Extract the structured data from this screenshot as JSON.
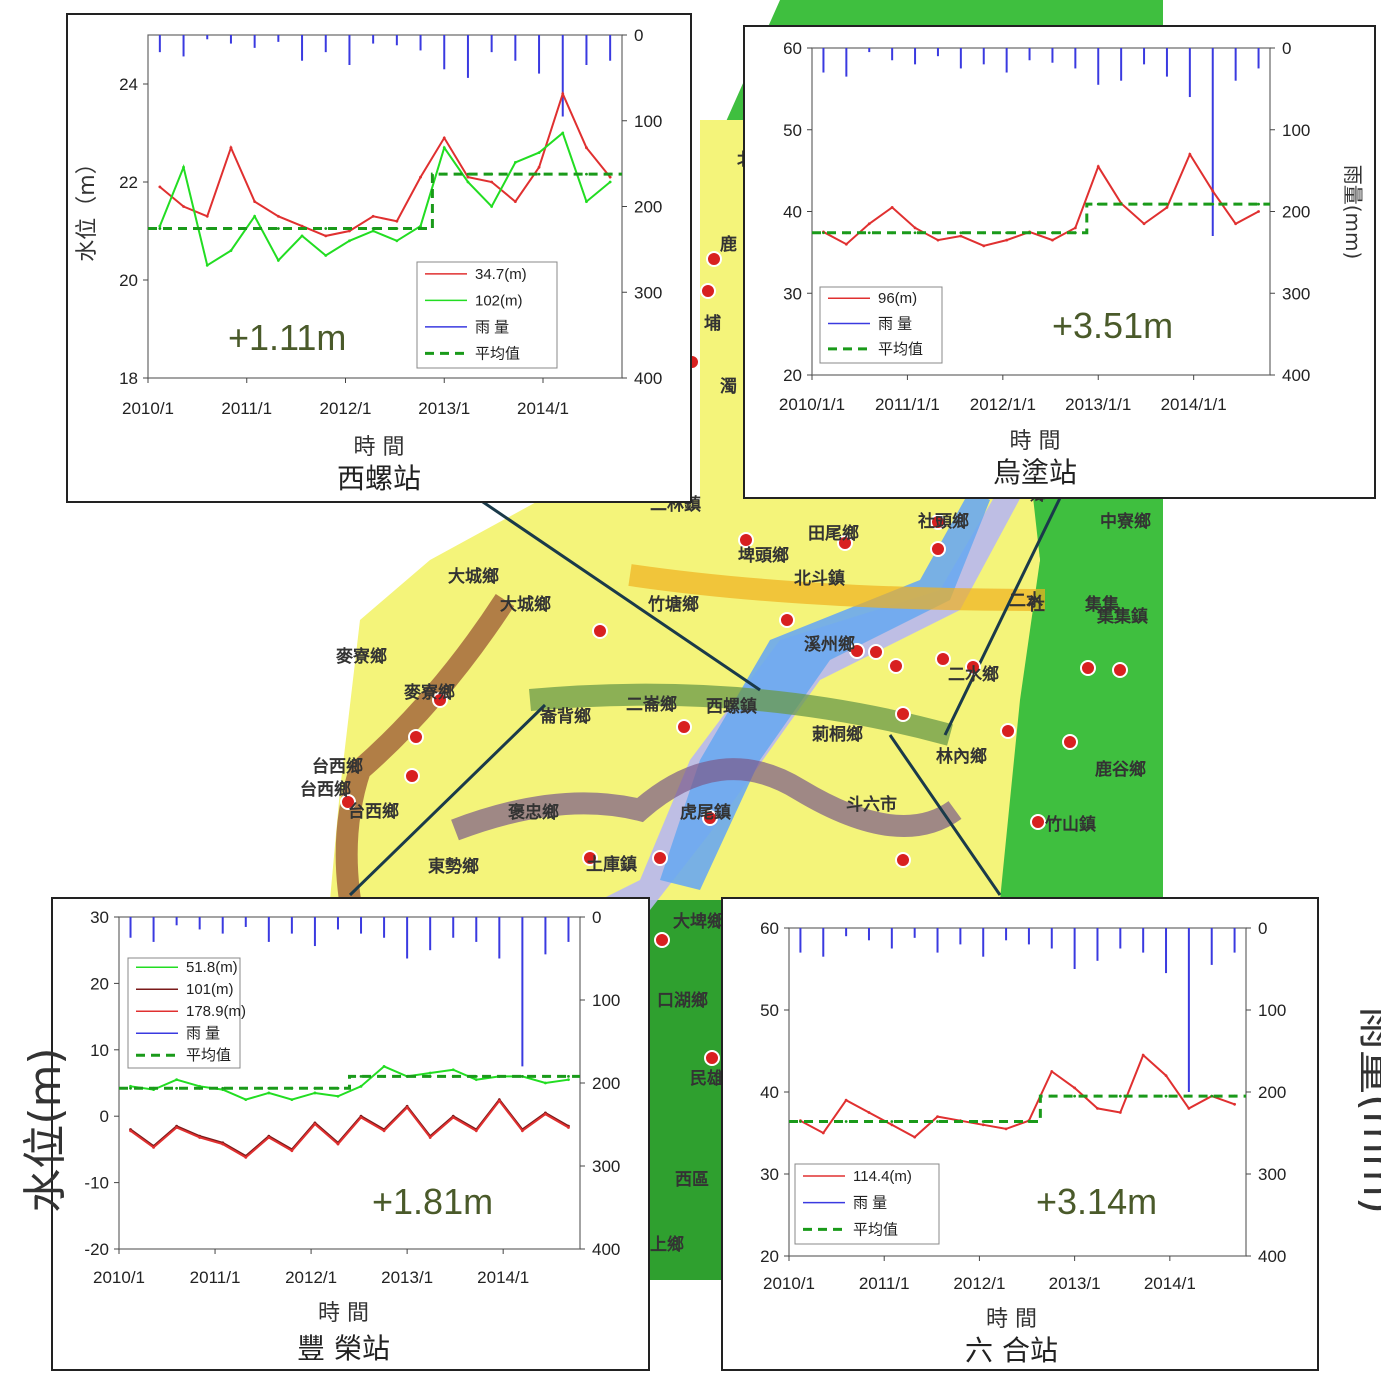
{
  "map": {
    "towns": [
      "大城鄉",
      "大城鄉",
      "麥寮鄉",
      "麥寮鄉",
      "台西鄉",
      "台西鄉",
      "台西鄉",
      "崙背鄉",
      "二崙鄉",
      "西螺鎮",
      "東勢鄉",
      "褒忠鄉",
      "土庫鎮",
      "虎尾鎮",
      "斗六市",
      "林內鄉",
      "莿桐鄉",
      "二水鄉",
      "竹塘鄉",
      "北斗鎮",
      "溪州鄉",
      "田尾鄉",
      "埤頭鄉",
      "社頭鄉",
      "二林鎮",
      "大埤鄉",
      "口湖鄉",
      "民雄鄉",
      "西區",
      "上鄉",
      "竹山鎮",
      "鹿谷鄉",
      "集集鎮",
      "鹿",
      "濁",
      "中寮鄉",
      "社",
      "埔",
      "鄉",
      "二水",
      "集集",
      "北"
    ]
  },
  "charts": [
    {
      "station": "西螺站",
      "delta": "+1.11m",
      "xlabel": "時 間",
      "ylabel": "水位（m）",
      "y2label": "",
      "xticks": [
        "2010/1",
        "2011/1",
        "2012/1",
        "2013/1",
        "2014/1"
      ],
      "yticks": [
        "18",
        "20",
        "22",
        "24"
      ],
      "y2ticks": [
        "0",
        "100",
        "200",
        "300",
        "400"
      ],
      "legend": [
        {
          "label": "34.7(m)",
          "color": "#e03030",
          "style": "solid"
        },
        {
          "label": "102(m)",
          "color": "#22dd22",
          "style": "solid"
        },
        {
          "label": "雨 量",
          "color": "#3a3ae0",
          "style": "solid"
        },
        {
          "label": "平均值",
          "color": "#1a9a1a",
          "style": "dashed"
        }
      ]
    },
    {
      "station": "烏塗站",
      "delta": "+3.51m",
      "xlabel": "時 間",
      "ylabel": "",
      "y2label": "雨量(mm)",
      "xticks": [
        "2010/1/1",
        "2011/1/1",
        "2012/1/1",
        "2013/1/1",
        "2014/1/1"
      ],
      "yticks": [
        "20",
        "30",
        "40",
        "50",
        "60"
      ],
      "y2ticks": [
        "0",
        "100",
        "200",
        "300",
        "400"
      ],
      "legend": [
        {
          "label": "96(m)",
          "color": "#e03030",
          "style": "solid"
        },
        {
          "label": "雨 量",
          "color": "#3a3ae0",
          "style": "solid"
        },
        {
          "label": "平均值",
          "color": "#1a9a1a",
          "style": "dashed"
        }
      ]
    },
    {
      "station": "豐 榮站",
      "delta": "+1.81m",
      "xlabel": "時 間",
      "ylabel": "",
      "y2label": "",
      "xticks": [
        "2010/1",
        "2011/1",
        "2012/1",
        "2013/1",
        "2014/1"
      ],
      "yticks": [
        "-20",
        "-10",
        "0",
        "10",
        "20",
        "30"
      ],
      "y2ticks": [
        "0",
        "100",
        "200",
        "300",
        "400"
      ],
      "legend": [
        {
          "label": "51.8(m)",
          "color": "#22dd22",
          "style": "solid"
        },
        {
          "label": "101(m)",
          "color": "#7a1a1a",
          "style": "solid"
        },
        {
          "label": "178.9(m)",
          "color": "#e03030",
          "style": "solid"
        },
        {
          "label": "雨 量",
          "color": "#3a3ae0",
          "style": "solid"
        },
        {
          "label": "平均值",
          "color": "#1a9a1a",
          "style": "dashed"
        }
      ]
    },
    {
      "station": "六 合站",
      "delta": "+3.14m",
      "xlabel": "時 間",
      "ylabel": "",
      "y2label": "",
      "xticks": [
        "2010/1",
        "2011/1",
        "2012/1",
        "2013/1",
        "2014/1"
      ],
      "yticks": [
        "20",
        "30",
        "40",
        "50",
        "60"
      ],
      "y2ticks": [
        "0",
        "100",
        "200",
        "300",
        "400"
      ],
      "legend": [
        {
          "label": "114.4(m)",
          "color": "#e03030",
          "style": "solid"
        },
        {
          "label": "雨 量",
          "color": "#3a3ae0",
          "style": "solid"
        },
        {
          "label": "平均值",
          "color": "#1a9a1a",
          "style": "dashed"
        }
      ]
    }
  ],
  "outer_labels": {
    "left": "水位(m)",
    "right": "雨量(mm)"
  },
  "chart_data": [
    {
      "type": "line",
      "title": "西螺站",
      "xlabel": "時 間",
      "ylabel": "水位（m）",
      "xlim": [
        "2010/1",
        "2014/12"
      ],
      "ylim": [
        18,
        25
      ],
      "y2lim": [
        0,
        400
      ],
      "x": [
        "2010/1",
        "2010/4",
        "2010/7",
        "2010/10",
        "2011/1",
        "2011/4",
        "2011/7",
        "2011/10",
        "2012/1",
        "2012/4",
        "2012/7",
        "2012/10",
        "2013/1",
        "2013/4",
        "2013/7",
        "2013/10",
        "2014/1",
        "2014/4",
        "2014/7",
        "2014/10"
      ],
      "series": [
        {
          "name": "34.7(m)",
          "values": [
            21.9,
            21.5,
            21.3,
            22.7,
            21.6,
            21.3,
            21.1,
            20.9,
            21.0,
            21.3,
            21.2,
            22.1,
            22.9,
            22.1,
            22.0,
            21.6,
            22.3,
            23.8,
            22.7,
            22.1
          ]
        },
        {
          "name": "102(m)",
          "values": [
            21.1,
            22.3,
            20.3,
            20.6,
            21.3,
            20.4,
            20.9,
            20.5,
            20.8,
            21.0,
            20.8,
            21.1,
            22.7,
            22.0,
            21.5,
            22.4,
            22.6,
            23.0,
            21.6,
            22.0
          ]
        },
        {
          "name": "平均值",
          "values": [
            21.05,
            21.05,
            21.05,
            21.05,
            21.05,
            21.05,
            21.05,
            21.05,
            21.05,
            21.05,
            21.05,
            21.05,
            22.16,
            22.16,
            22.16,
            22.16,
            22.16,
            22.16,
            22.16,
            22.16
          ]
        }
      ],
      "rain_mm": [
        20,
        25,
        5,
        10,
        15,
        8,
        30,
        20,
        35,
        10,
        12,
        18,
        40,
        50,
        20,
        30,
        45,
        95,
        35,
        30
      ]
    },
    {
      "type": "line",
      "title": "烏塗站",
      "xlabel": "時 間",
      "y2label": "雨量(mm)",
      "xlim": [
        "2010/1/1",
        "2014/12/31"
      ],
      "ylim": [
        20,
        60
      ],
      "y2lim": [
        0,
        400
      ],
      "x": [
        "2010/1",
        "2010/4",
        "2010/7",
        "2010/10",
        "2011/1",
        "2011/4",
        "2011/7",
        "2011/10",
        "2012/1",
        "2012/4",
        "2012/7",
        "2012/10",
        "2013/1",
        "2013/4",
        "2013/7",
        "2013/10",
        "2014/1",
        "2014/4",
        "2014/7",
        "2014/10"
      ],
      "series": [
        {
          "name": "96(m)",
          "values": [
            37.5,
            36.0,
            38.5,
            40.5,
            38.0,
            36.5,
            37.0,
            35.8,
            36.5,
            37.5,
            36.5,
            38.0,
            45.5,
            41.0,
            38.5,
            40.5,
            47.0,
            42.5,
            38.5,
            40.0
          ]
        },
        {
          "name": "平均值",
          "values": [
            37.4,
            37.4,
            37.4,
            37.4,
            37.4,
            37.4,
            37.4,
            37.4,
            37.4,
            37.4,
            37.4,
            37.4,
            40.9,
            40.9,
            40.9,
            40.9,
            40.9,
            40.9,
            40.9,
            40.9
          ]
        }
      ],
      "rain_mm": [
        30,
        35,
        5,
        15,
        20,
        10,
        25,
        20,
        30,
        15,
        18,
        25,
        45,
        40,
        20,
        35,
        60,
        230,
        40,
        25
      ]
    },
    {
      "type": "line",
      "title": "豐 榮站",
      "xlabel": "時 間",
      "xlim": [
        "2010/1",
        "2014/12"
      ],
      "ylim": [
        -20,
        30
      ],
      "y2lim": [
        0,
        400
      ],
      "x": [
        "2010/1",
        "2010/4",
        "2010/7",
        "2010/10",
        "2011/1",
        "2011/4",
        "2011/7",
        "2011/10",
        "2012/1",
        "2012/4",
        "2012/7",
        "2012/10",
        "2013/1",
        "2013/4",
        "2013/7",
        "2013/10",
        "2014/1",
        "2014/4",
        "2014/7",
        "2014/10"
      ],
      "series": [
        {
          "name": "51.8(m)",
          "values": [
            4.5,
            4.0,
            5.5,
            4.5,
            4.0,
            2.5,
            3.5,
            2.5,
            3.5,
            3.0,
            4.5,
            7.5,
            6.0,
            6.5,
            7.0,
            5.5,
            6.0,
            6.0,
            5.0,
            5.5
          ]
        },
        {
          "name": "101(m)",
          "values": [
            -2.0,
            -4.5,
            -1.5,
            -3.0,
            -4.0,
            -6.0,
            -3.0,
            -5.0,
            -1.0,
            -4.0,
            0.0,
            -2.0,
            1.5,
            -3.0,
            0.0,
            -2.0,
            2.5,
            -2.0,
            0.5,
            -1.5
          ]
        },
        {
          "name": "178.9(m)",
          "values": [
            -2.2,
            -4.7,
            -1.7,
            -3.2,
            -4.2,
            -6.2,
            -3.2,
            -5.2,
            -1.2,
            -4.2,
            -0.2,
            -2.2,
            1.3,
            -3.2,
            -0.2,
            -2.2,
            2.3,
            -2.2,
            0.3,
            -1.7
          ]
        },
        {
          "name": "平均值",
          "values": [
            4.2,
            4.2,
            4.2,
            4.2,
            4.2,
            4.2,
            4.2,
            4.2,
            4.2,
            4.2,
            6.0,
            6.0,
            6.0,
            6.0,
            6.0,
            6.0,
            6.0,
            6.0,
            6.0,
            6.0
          ]
        }
      ],
      "rain_mm": [
        25,
        30,
        10,
        15,
        20,
        12,
        30,
        20,
        35,
        15,
        20,
        25,
        50,
        40,
        25,
        30,
        50,
        180,
        45,
        30
      ]
    },
    {
      "type": "line",
      "title": "六 合站",
      "xlabel": "時 間",
      "xlim": [
        "2010/1",
        "2014/12"
      ],
      "ylim": [
        20,
        60
      ],
      "y2lim": [
        0,
        400
      ],
      "x": [
        "2010/1",
        "2010/4",
        "2010/7",
        "2010/10",
        "2011/1",
        "2011/4",
        "2011/7",
        "2011/10",
        "2012/1",
        "2012/4",
        "2012/7",
        "2012/10",
        "2013/1",
        "2013/4",
        "2013/7",
        "2013/10",
        "2014/1",
        "2014/4",
        "2014/7",
        "2014/10"
      ],
      "series": [
        {
          "name": "114.4(m)",
          "values": [
            36.5,
            35.0,
            39.0,
            37.5,
            36.0,
            34.5,
            37.0,
            36.5,
            36.0,
            35.5,
            36.5,
            42.5,
            40.5,
            38.0,
            37.5,
            44.5,
            42.0,
            38.0,
            39.5,
            38.5
          ]
        },
        {
          "name": "平均值",
          "values": [
            36.4,
            36.4,
            36.4,
            36.4,
            36.4,
            36.4,
            36.4,
            36.4,
            36.4,
            36.4,
            36.4,
            39.5,
            39.5,
            39.5,
            39.5,
            39.5,
            39.5,
            39.5,
            39.5,
            39.5
          ]
        }
      ],
      "rain_mm": [
        30,
        35,
        10,
        15,
        25,
        12,
        30,
        20,
        35,
        15,
        20,
        25,
        50,
        40,
        25,
        30,
        55,
        200,
        45,
        30
      ]
    }
  ]
}
